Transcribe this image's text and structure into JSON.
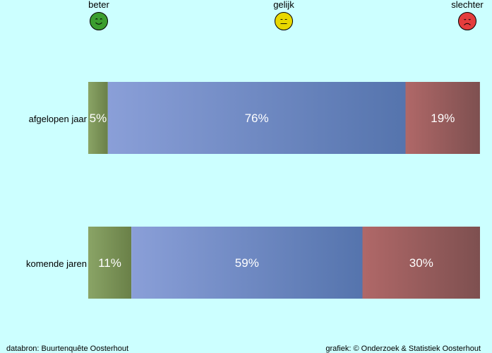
{
  "legend": [
    {
      "key": "beter",
      "label": "beter",
      "color": "#3b9e2e",
      "icon": "smiling-face-icon"
    },
    {
      "key": "gelijk",
      "label": "gelijk",
      "color": "#e8d800",
      "icon": "neutral-face-icon"
    },
    {
      "key": "slechter",
      "label": "slechter",
      "color": "#e43d3d",
      "icon": "sad-face-icon"
    }
  ],
  "chart_data": {
    "type": "bar",
    "orientation": "horizontal",
    "stacked": true,
    "categories": [
      "afgelopen jaar",
      "komende jaren"
    ],
    "series": [
      {
        "name": "beter",
        "values": [
          5,
          11
        ],
        "labels": [
          "5%",
          "11%"
        ],
        "color_start": "#8aa466",
        "color_end": "#6a8048"
      },
      {
        "name": "gelijk",
        "values": [
          76,
          59
        ],
        "labels": [
          "76%",
          "59%"
        ],
        "color_start": "#8a9fd8",
        "color_end": "#5574ad"
      },
      {
        "name": "slechter",
        "values": [
          19,
          30
        ],
        "labels": [
          "19%",
          "30%"
        ],
        "color_start": "#b06868",
        "color_end": "#7e5050"
      }
    ],
    "xlim": [
      0,
      100
    ],
    "grid": false
  },
  "footer": {
    "left": "databron: Buurtenquête Oosterhout",
    "right": "grafiek: © Onderzoek & Statistiek Oosterhout"
  }
}
